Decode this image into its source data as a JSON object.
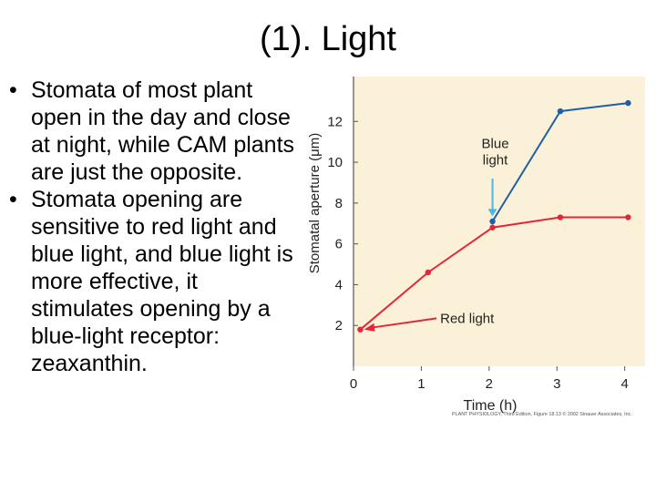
{
  "slide": {
    "title": "(1). Light",
    "bullets": [
      "Stomata of most plant open in the day and close at night, while CAM plants are just the opposite.",
      "Stomata opening are sensitive to red light and blue light, and blue light is more effective, it stimulates opening by a blue-light receptor: zeaxanthin."
    ]
  },
  "chart_data": {
    "type": "line",
    "title": "",
    "xlabel": "Time (h)",
    "ylabel": "Stomatal aperture (μm)",
    "xlim": [
      0,
      4.3
    ],
    "ylim": [
      0,
      14.2
    ],
    "xticks": [
      0,
      1,
      2,
      3,
      4
    ],
    "yticks": [
      2,
      4,
      6,
      8,
      10,
      12
    ],
    "grid": false,
    "background": "#fbf1d8",
    "series": [
      {
        "name": "Red light",
        "color": "#e0283a",
        "x": [
          0.1,
          1.1,
          2.05,
          3.05,
          4.05
        ],
        "y": [
          1.8,
          4.6,
          6.8,
          7.3,
          7.3
        ]
      },
      {
        "name": "Blue light",
        "color": "#1f5fa8",
        "x": [
          2.05,
          3.05,
          4.05
        ],
        "y": [
          7.1,
          12.5,
          12.9
        ]
      }
    ],
    "annotations": [
      {
        "lines": [
          "Blue",
          "light"
        ],
        "color": "#4db7e0"
      },
      {
        "lines": [
          "Red light"
        ],
        "color": "#e0283a"
      }
    ],
    "credit": "PLANT PHYSIOLOGY, Third Edition, Figure 18.13 © 2002 Sinauer Associates, Inc."
  }
}
